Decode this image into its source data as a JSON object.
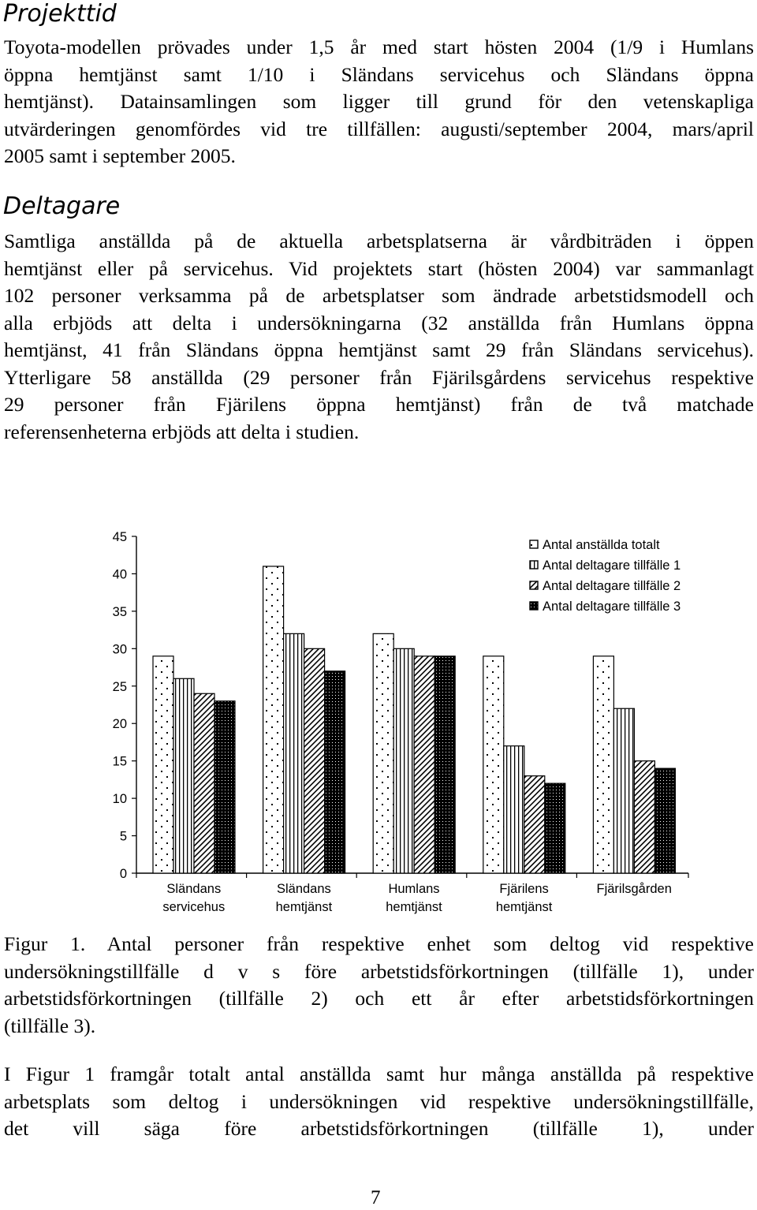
{
  "sections": {
    "projekt": {
      "heading": "Projekttid",
      "lines": [
        "Toyota-modellen prövades under 1,5 år med start hösten 2004 (1/9 i Humlans",
        "öppna hemtjänst samt 1/10 i Sländans servicehus och Sländans öppna",
        "hemtjänst). Datainsamlingen som ligger till grund för den vetenskapliga",
        "utvärderingen genomfördes vid tre tillfällen: augusti/september 2004, mars/april",
        "2005 samt i september 2005."
      ]
    },
    "deltagare": {
      "heading": "Deltagare",
      "lines": [
        "Samtliga anställda på de aktuella arbetsplatserna är vårdbiträden i öppen",
        "hemtjänst eller på servicehus. Vid projektets start (hösten 2004) var sammanlagt",
        "102 personer verksamma på de arbetsplatser som ändrade arbetstidsmodell och",
        "alla erbjöds att delta i undersökningarna (32 anställda från Humlans öppna",
        "hemtjänst, 41 från Sländans öppna hemtjänst samt 29 från Sländans servicehus).",
        "Ytterligare 58 anställda (29 personer från Fjärilsgårdens servicehus respektive",
        "29 personer från Fjärilens öppna hemtjänst) från de två matchade",
        "referensenheterna erbjöds att delta i studien."
      ]
    }
  },
  "chart_data": {
    "type": "bar",
    "categories": [
      [
        "Sländans",
        "servicehus"
      ],
      [
        "Sländans",
        "hemtjänst"
      ],
      [
        "Humlans",
        "hemtjänst"
      ],
      [
        "Fjärilens",
        "hemtjänst"
      ],
      [
        "Fjärilsgården"
      ]
    ],
    "series": [
      {
        "name": "Antal anställda totalt",
        "values": [
          29,
          41,
          32,
          29,
          29
        ],
        "pattern": "dots"
      },
      {
        "name": "Antal deltagare tillfälle 1",
        "values": [
          26,
          32,
          30,
          17,
          22
        ],
        "pattern": "vlines"
      },
      {
        "name": "Antal deltagare tillfälle 2",
        "values": [
          24,
          30,
          29,
          13,
          15
        ],
        "pattern": "diag"
      },
      {
        "name": "Antal deltagare tillfälle 3",
        "values": [
          23,
          27,
          29,
          12,
          14
        ],
        "pattern": "dense"
      }
    ],
    "yticks": [
      0,
      5,
      10,
      15,
      20,
      25,
      30,
      35,
      40,
      45
    ],
    "ylim": [
      0,
      45
    ],
    "legend_position": "top-right",
    "grid": false
  },
  "caption": {
    "lines": [
      "Figur 1. Antal personer från respektive enhet som deltog vid respektive",
      "undersökningstillfälle d v s före arbetstidsförkortningen (tillfälle 1), under",
      "arbetstidsförkortningen (tillfälle 2) och ett år efter arbetstidsförkortningen",
      "(tillfälle 3)."
    ]
  },
  "closing": {
    "lines": [
      "I Figur 1 framgår totalt antal anställda samt hur många anställda på respektive",
      "arbetsplats som deltog i undersökningen vid respektive undersökningstillfälle,",
      "det vill säga före arbetstidsförkortningen (tillfälle 1), under"
    ]
  },
  "page_number": "7"
}
